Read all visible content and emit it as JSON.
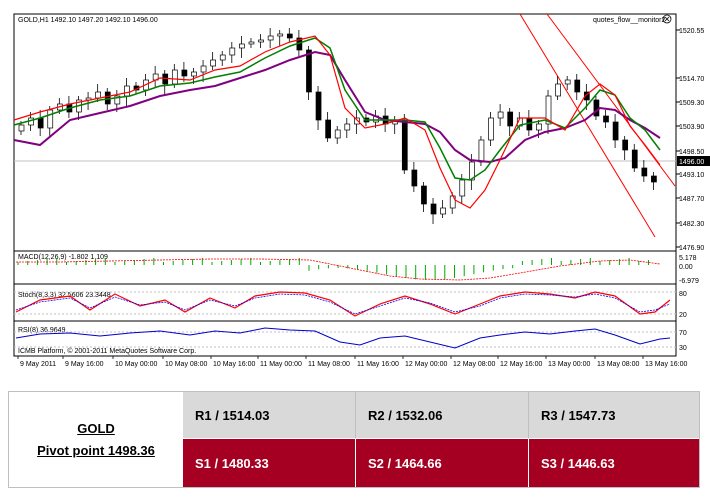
{
  "chart": {
    "header": "GOLD,H1  1492.10 1497.20 1492.10 1496.00",
    "indicator_label": "quotes_flow__monitor2",
    "close_icon": "close-icon",
    "price_ticks": [
      "1520.55",
      "1514.70",
      "1509.30",
      "1503.90",
      "1498.50",
      "1493.10",
      "1487.70",
      "1482.30",
      "1476.90"
    ],
    "current_price": "1496.00",
    "macd_label": "MACD(12,26,9) -1.802 1.109",
    "macd_ticks": [
      "5.178",
      "0.00",
      "-6.979"
    ],
    "stoch_label": "Stoch(8,3,3) 32.5606 23.3448",
    "stoch_ticks": [
      "80",
      "20"
    ],
    "rsi_label": "RSI(8) 36.9649",
    "rsi_ticks": [
      "70",
      "30"
    ],
    "copyright": "ICMB Platform, © 2001-2011 MetaQuotes Software Corp.",
    "time_labels": [
      "9 May 2011",
      "9 May 16:00",
      "10 May 00:00",
      "10 May 08:00",
      "10 May 16:00",
      "11 May 00:00",
      "11 May 08:00",
      "11 May 16:00",
      "12 May 00:00",
      "12 May 08:00",
      "12 May 16:00",
      "13 May 00:00",
      "13 May 08:00",
      "13 May 16:00"
    ],
    "colors": {
      "up_candle": "#ffffff",
      "down_candle": "#000000",
      "ma_fast": "#ff0000",
      "ma_mid": "#008000",
      "ma_slow": "#800080",
      "channel": "#ff0000",
      "macd_hist": "#00aa00",
      "signal": "#ff0000",
      "rsi": "#0000cc"
    }
  },
  "pivot": {
    "symbol": "GOLD",
    "pivot_label": "Pivot point 1498.36",
    "resistance": [
      "R1 / 1514.03",
      "R2 / 1532.06",
      "R3 / 1547.73"
    ],
    "support": [
      "S1 / 1480.33",
      "S2 / 1464.66",
      "S3 / 1446.63"
    ],
    "colors": {
      "resistance_bg": "#d9d9d9",
      "support_bg": "#a50021"
    }
  }
}
